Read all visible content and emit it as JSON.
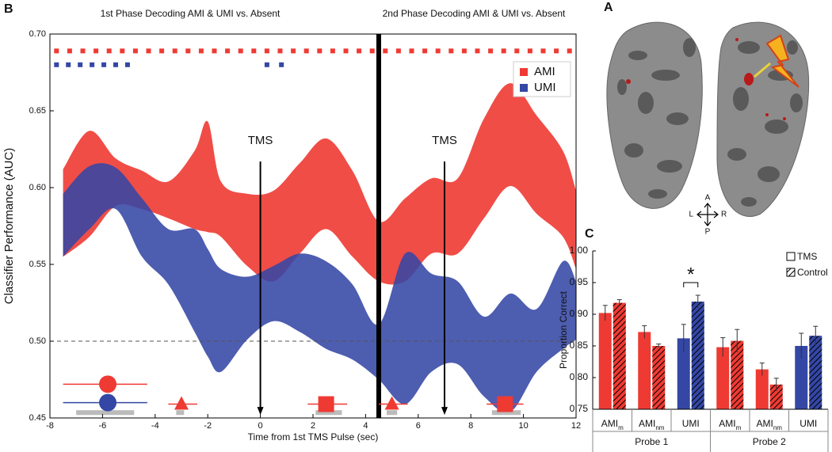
{
  "chart_data": [
    {
      "type": "band",
      "panel_label": "B",
      "phase_titles": [
        "1st Phase Decoding AMI & UMI vs. Absent",
        "2nd  Phase Decoding AMI & UMI vs. Absent"
      ],
      "xlabel": "Time from 1st TMS Pulse (sec)",
      "ylabel": "Classifier Performance (AUC)",
      "xlim": [
        -8,
        12
      ],
      "xticks": [
        -8,
        -6,
        -4,
        -2,
        0,
        2,
        4,
        6,
        8,
        10,
        12
      ],
      "ylim": [
        0.45,
        0.7
      ],
      "yticks": [
        0.45,
        {
          "value": 0.5,
          "label": "0.50"
        },
        0.55,
        {
          "value": 0.6,
          "label": "0.60"
        },
        0.65,
        {
          "value": 0.7,
          "label": "0.70"
        }
      ],
      "legend": "upper right",
      "x": [
        -7.5,
        -6.5,
        -5.5,
        -4.5,
        -3.5,
        -2.5,
        -2,
        -1.5,
        -0.5,
        0.5,
        1.5,
        2.5,
        3.5,
        4.5,
        5.5,
        6.5,
        7.5,
        8.5,
        9.5,
        10.5,
        11.5,
        12
      ],
      "series": [
        {
          "name": "AMI",
          "color": "#ee3a33",
          "upper": [
            0.612,
            0.637,
            0.619,
            0.611,
            0.604,
            0.624,
            0.643,
            0.604,
            0.596,
            0.598,
            0.616,
            0.632,
            0.611,
            0.578,
            0.593,
            0.606,
            0.606,
            0.645,
            0.668,
            0.647,
            0.624,
            0.598
          ],
          "lower": [
            0.555,
            0.568,
            0.588,
            0.586,
            0.58,
            0.573,
            0.571,
            0.568,
            0.549,
            0.539,
            0.557,
            0.573,
            0.555,
            0.539,
            0.539,
            0.557,
            0.557,
            0.58,
            0.601,
            0.583,
            0.568,
            0.547
          ]
        },
        {
          "name": "UMI",
          "color": "#3447a5",
          "upper": [
            0.596,
            0.614,
            0.613,
            0.593,
            0.573,
            0.573,
            0.56,
            0.547,
            0.542,
            0.549,
            0.557,
            0.552,
            0.537,
            0.511,
            0.557,
            0.544,
            0.539,
            0.516,
            0.531,
            0.521,
            0.552,
            0.539
          ],
          "lower": [
            0.555,
            0.573,
            0.586,
            0.555,
            0.537,
            0.506,
            0.49,
            0.48,
            0.501,
            0.513,
            0.506,
            0.495,
            0.488,
            0.475,
            0.459,
            0.48,
            0.485,
            0.464,
            0.454,
            0.48,
            0.495,
            0.501
          ]
        }
      ],
      "significance": [
        {
          "color": "#ee3a33",
          "y": 0.689,
          "x": [
            -7.75,
            -7.25,
            -6.75,
            -6.25,
            -5.75,
            -5.25,
            -4.75,
            -4.25,
            -3.75,
            -3.25,
            -2.75,
            -2.25,
            -1.75,
            -1.25,
            -0.75,
            -0.25,
            0.25,
            0.75,
            1.25,
            1.75,
            2.25,
            2.75,
            3.25,
            3.75,
            4.25,
            4.75,
            5.25,
            5.75,
            6.25,
            6.75,
            7.25,
            7.75,
            8.25,
            8.75,
            9.25,
            9.75,
            10.25,
            10.75,
            11.25,
            11.75
          ]
        },
        {
          "color": "#3447a5",
          "y": 0.68,
          "x": [
            -7.75,
            -7.3,
            -6.85,
            -6.4,
            -5.95,
            -5.5,
            -5.05,
            0.25,
            0.8
          ]
        }
      ],
      "chance_line": 0.5,
      "phase_boundary": 4.5,
      "tms_events": [
        {
          "label": "TMS",
          "x": 0
        },
        {
          "label": "TMS",
          "x": 7
        }
      ],
      "arrow_from": 0.617,
      "arrow_to": 0.452,
      "peaks": [
        {
          "shape": "circle",
          "color": "#ee3a33",
          "x": -5.8,
          "y": 0.472,
          "xlo": -7.5,
          "xhi": -4.3
        },
        {
          "shape": "circle",
          "color": "#3447a5",
          "x": -5.8,
          "y": 0.46,
          "xlo": -7.5,
          "xhi": -4.3
        },
        {
          "shape": "triangle",
          "color": "#ee3a33",
          "x": -3.0,
          "y": 0.459,
          "xlo": -3.5,
          "xhi": -2.4
        },
        {
          "shape": "square",
          "color": "#ee3a33",
          "x": 2.5,
          "y": 0.459,
          "xlo": 1.8,
          "xhi": 3.3
        },
        {
          "shape": "triangle",
          "color": "#ee3a33",
          "x": 5.0,
          "y": 0.459,
          "xlo": 4.5,
          "xhi": 5.6
        },
        {
          "shape": "square",
          "color": "#ee3a33",
          "x": 9.3,
          "y": 0.459,
          "xlo": 8.6,
          "xhi": 10.0
        }
      ],
      "peak_ranges": [
        [
          -7,
          -4.8
        ],
        [
          -3.2,
          -2.9
        ],
        [
          2.1,
          3.1
        ],
        [
          4.8,
          5.2
        ],
        [
          8.8,
          9.9
        ]
      ],
      "peak_range_y": 0.4535
    },
    {
      "type": "grouped-bar",
      "panel_label": "C",
      "ylabel": "Proportion Correct",
      "ylim": [
        0.75,
        1.0
      ],
      "yticks": [
        0.75,
        {
          "value": 0.8,
          "label": "0.80"
        },
        0.85,
        {
          "value": 0.9,
          "label": "0.90"
        },
        0.95,
        {
          "value": 1.0,
          "label": "1.00"
        }
      ],
      "categories": [
        {
          "name": "AMI",
          "sub": "m"
        },
        {
          "name": "AMI",
          "sub": "nm"
        },
        {
          "name": "UMI"
        },
        {
          "name": "AMI",
          "sub": "m"
        },
        {
          "name": "AMI",
          "sub": "nm"
        },
        {
          "name": "UMI"
        }
      ],
      "category_colors": [
        "#ee3a33",
        "#ee3a33",
        "#3447a5",
        "#ee3a33",
        "#ee3a33",
        "#3447a5"
      ],
      "groups": [
        "Probe 1",
        "Probe 2"
      ],
      "legend": "upper right",
      "series": [
        {
          "name": "TMS",
          "hatch": false,
          "values": [
            0.902,
            0.872,
            0.862,
            0.848,
            0.813,
            0.85
          ],
          "errors": [
            0.012,
            0.01,
            0.022,
            0.015,
            0.01,
            0.02
          ]
        },
        {
          "name": "Control",
          "hatch": true,
          "values": [
            0.918,
            0.85,
            0.92,
            0.858,
            0.789,
            0.866
          ],
          "errors": [
            0.005,
            0.003,
            0.01,
            0.018,
            0.01,
            0.015
          ]
        }
      ],
      "significance_label": "*"
    }
  ],
  "panel_a": {
    "label": "A",
    "compass": {
      "up": "A",
      "down": "P",
      "left": "L",
      "right": "R"
    }
  }
}
